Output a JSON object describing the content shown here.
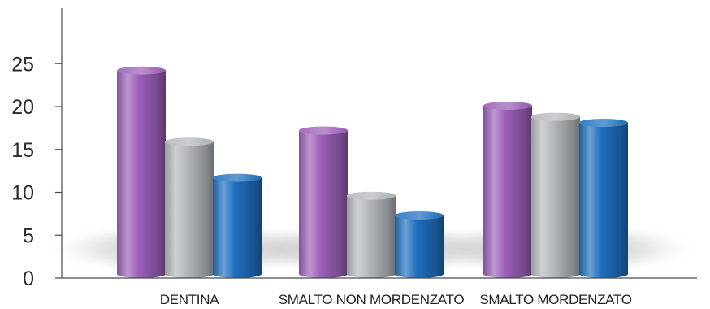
{
  "chart_data": {
    "type": "bar",
    "title": "",
    "xlabel": "",
    "ylabel": "",
    "categories": [
      "DENTINA",
      "SMALTO NON MORDENZATO",
      "SMALTO MORDENZATO"
    ],
    "series": [
      {
        "color": "#9b5fb8",
        "values": [
          24.2,
          17.2,
          20.1
        ]
      },
      {
        "color": "#b4b8bb",
        "values": [
          15.9,
          9.6,
          18.8
        ]
      },
      {
        "color": "#1f6fbf",
        "values": [
          11.7,
          7.3,
          18.1
        ]
      }
    ],
    "y_ticks": [
      0,
      5,
      10,
      15,
      20,
      25
    ],
    "ylim": [
      0,
      30
    ],
    "grid": false,
    "legend": "none"
  }
}
